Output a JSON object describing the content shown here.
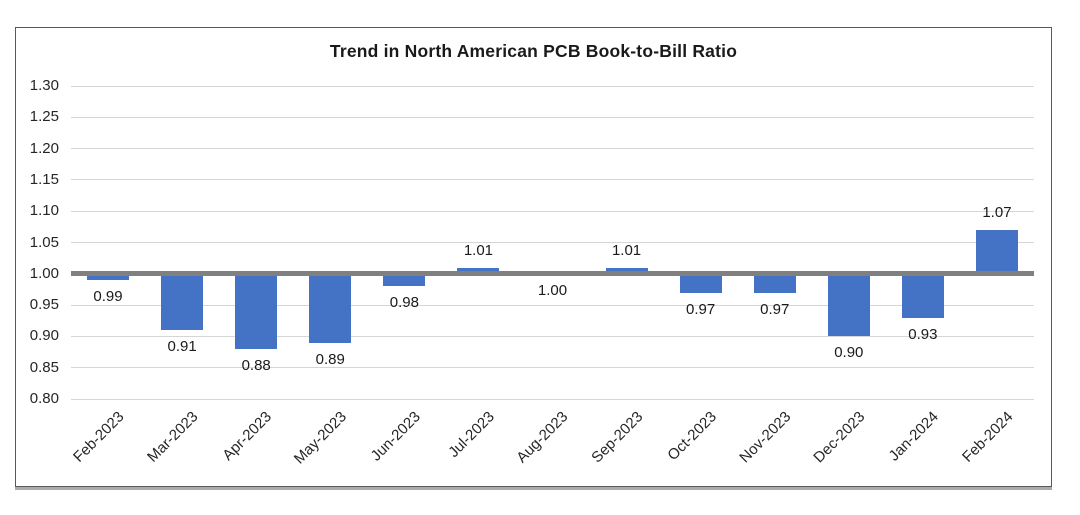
{
  "chart_data": {
    "type": "bar",
    "title": "Trend in North American PCB Book-to-Bill Ratio",
    "categories": [
      "Feb-2023",
      "Mar-2023",
      "Apr-2023",
      "May-2023",
      "Jun-2023",
      "Jul-2023",
      "Aug-2023",
      "Sep-2023",
      "Oct-2023",
      "Nov-2023",
      "Dec-2023",
      "Jan-2024",
      "Feb-2024"
    ],
    "values": [
      0.99,
      0.91,
      0.88,
      0.89,
      0.98,
      1.01,
      1.0,
      1.01,
      0.97,
      0.97,
      0.9,
      0.93,
      1.07
    ],
    "value_labels": [
      "0.99",
      "0.91",
      "0.88",
      "0.89",
      "0.98",
      "1.01",
      "1.00",
      "1.01",
      "0.97",
      "0.97",
      "0.90",
      "0.93",
      "1.07"
    ],
    "baseline": 1.0,
    "ylim": [
      0.8,
      1.3
    ],
    "y_tick_labels": [
      "0.80",
      "0.85",
      "0.90",
      "0.95",
      "1.00",
      "1.05",
      "1.10",
      "1.15",
      "1.20",
      "1.25",
      "1.30"
    ],
    "xlabel": "",
    "ylabel": "",
    "grid": true,
    "legend": "none",
    "colors": {
      "bar": "#4472C4",
      "baseline_line": "#808080",
      "gridline": "#d6d6d6",
      "text": "#262626",
      "title_text": "#1a1a1a",
      "chart_border": "#595959",
      "background": "#ffffff"
    }
  }
}
